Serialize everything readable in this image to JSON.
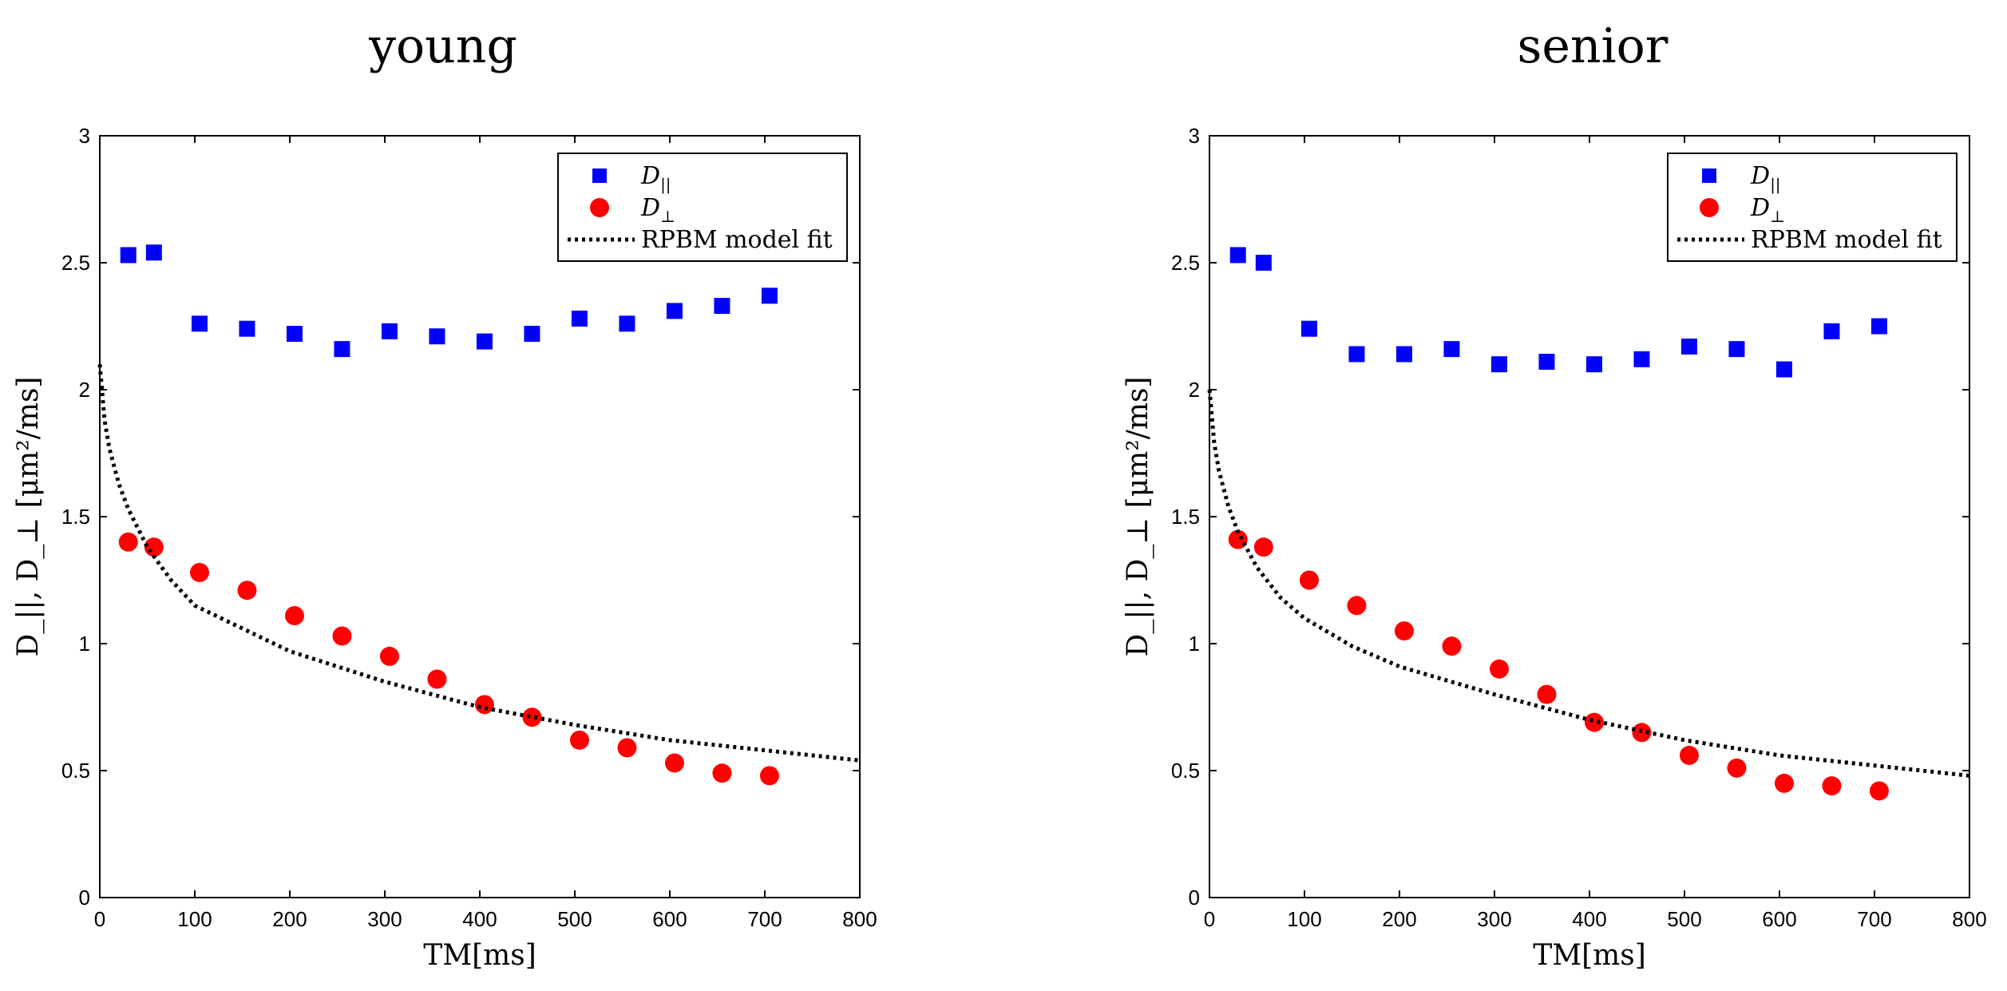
{
  "chart_data": [
    {
      "type": "scatter",
      "title": "young",
      "xlabel": "TM[ms]",
      "ylabel": "D_||,   D_⊥   [μm²/ms]",
      "xlim": [
        0,
        800
      ],
      "ylim": [
        0,
        3
      ],
      "xticks": [
        "0",
        "100",
        "200",
        "300",
        "400",
        "500",
        "600",
        "700",
        "800"
      ],
      "yticks": [
        "0",
        "0.5",
        "1",
        "1.5",
        "2",
        "2.5",
        "3"
      ],
      "grid": false,
      "legend_position": "top-right",
      "series": [
        {
          "name": "D_||",
          "legend_main": "D",
          "legend_sub": "||",
          "marker": "square",
          "color": "#0000ff",
          "x": [
            30,
            57,
            105,
            155,
            205,
            255,
            305,
            355,
            405,
            455,
            505,
            555,
            605,
            655,
            705
          ],
          "y": [
            2.53,
            2.54,
            2.26,
            2.24,
            2.22,
            2.16,
            2.23,
            2.21,
            2.19,
            2.22,
            2.28,
            2.26,
            2.31,
            2.33,
            2.37
          ]
        },
        {
          "name": "D_⊥",
          "legend_main": "D",
          "legend_sub": "⊥",
          "marker": "circle",
          "color": "#ff0000",
          "x": [
            30,
            57,
            105,
            155,
            205,
            255,
            305,
            355,
            405,
            455,
            505,
            555,
            605,
            655,
            705
          ],
          "y": [
            1.4,
            1.38,
            1.28,
            1.21,
            1.11,
            1.03,
            0.95,
            0.86,
            0.76,
            0.71,
            0.62,
            0.59,
            0.53,
            0.49,
            0.48
          ]
        },
        {
          "name": "RPBM model fit",
          "legend_main": "RPBM model fit",
          "marker": "dotted-line",
          "color": "#000000",
          "x": [
            0,
            5,
            10,
            20,
            30,
            50,
            75,
            100,
            150,
            200,
            300,
            400,
            500,
            600,
            700,
            800
          ],
          "y": [
            2.1,
            1.88,
            1.77,
            1.63,
            1.53,
            1.38,
            1.25,
            1.15,
            1.06,
            0.97,
            0.85,
            0.75,
            0.68,
            0.62,
            0.58,
            0.54
          ]
        }
      ]
    },
    {
      "type": "scatter",
      "title": "senior",
      "xlabel": "TM[ms]",
      "ylabel": "D_||,   D_⊥   [μm²/ms]",
      "xlim": [
        0,
        800
      ],
      "ylim": [
        0,
        3
      ],
      "xticks": [
        "0",
        "100",
        "200",
        "300",
        "400",
        "500",
        "600",
        "700",
        "800"
      ],
      "yticks": [
        "0",
        "0.5",
        "1",
        "1.5",
        "2",
        "2.5",
        "3"
      ],
      "grid": false,
      "legend_position": "top-right",
      "series": [
        {
          "name": "D_||",
          "legend_main": "D",
          "legend_sub": "||",
          "marker": "square",
          "color": "#0000ff",
          "x": [
            30,
            57,
            105,
            155,
            205,
            255,
            305,
            355,
            405,
            455,
            505,
            555,
            605,
            655,
            705
          ],
          "y": [
            2.53,
            2.5,
            2.24,
            2.14,
            2.14,
            2.16,
            2.1,
            2.11,
            2.1,
            2.12,
            2.17,
            2.16,
            2.08,
            2.23,
            2.25
          ]
        },
        {
          "name": "D_⊥",
          "legend_main": "D",
          "legend_sub": "⊥",
          "marker": "circle",
          "color": "#ff0000",
          "x": [
            30,
            57,
            105,
            155,
            205,
            255,
            305,
            355,
            405,
            455,
            505,
            555,
            605,
            655,
            705
          ],
          "y": [
            1.41,
            1.38,
            1.25,
            1.15,
            1.05,
            0.99,
            0.9,
            0.8,
            0.69,
            0.65,
            0.56,
            0.51,
            0.45,
            0.44,
            0.42
          ]
        },
        {
          "name": "RPBM model fit",
          "legend_main": "RPBM model fit",
          "marker": "dotted-line",
          "color": "#000000",
          "x": [
            0,
            5,
            10,
            20,
            30,
            50,
            75,
            100,
            150,
            200,
            300,
            400,
            500,
            600,
            700,
            800
          ],
          "y": [
            2.0,
            1.79,
            1.68,
            1.54,
            1.44,
            1.3,
            1.18,
            1.1,
            0.99,
            0.91,
            0.8,
            0.7,
            0.62,
            0.56,
            0.52,
            0.48
          ]
        }
      ]
    }
  ]
}
